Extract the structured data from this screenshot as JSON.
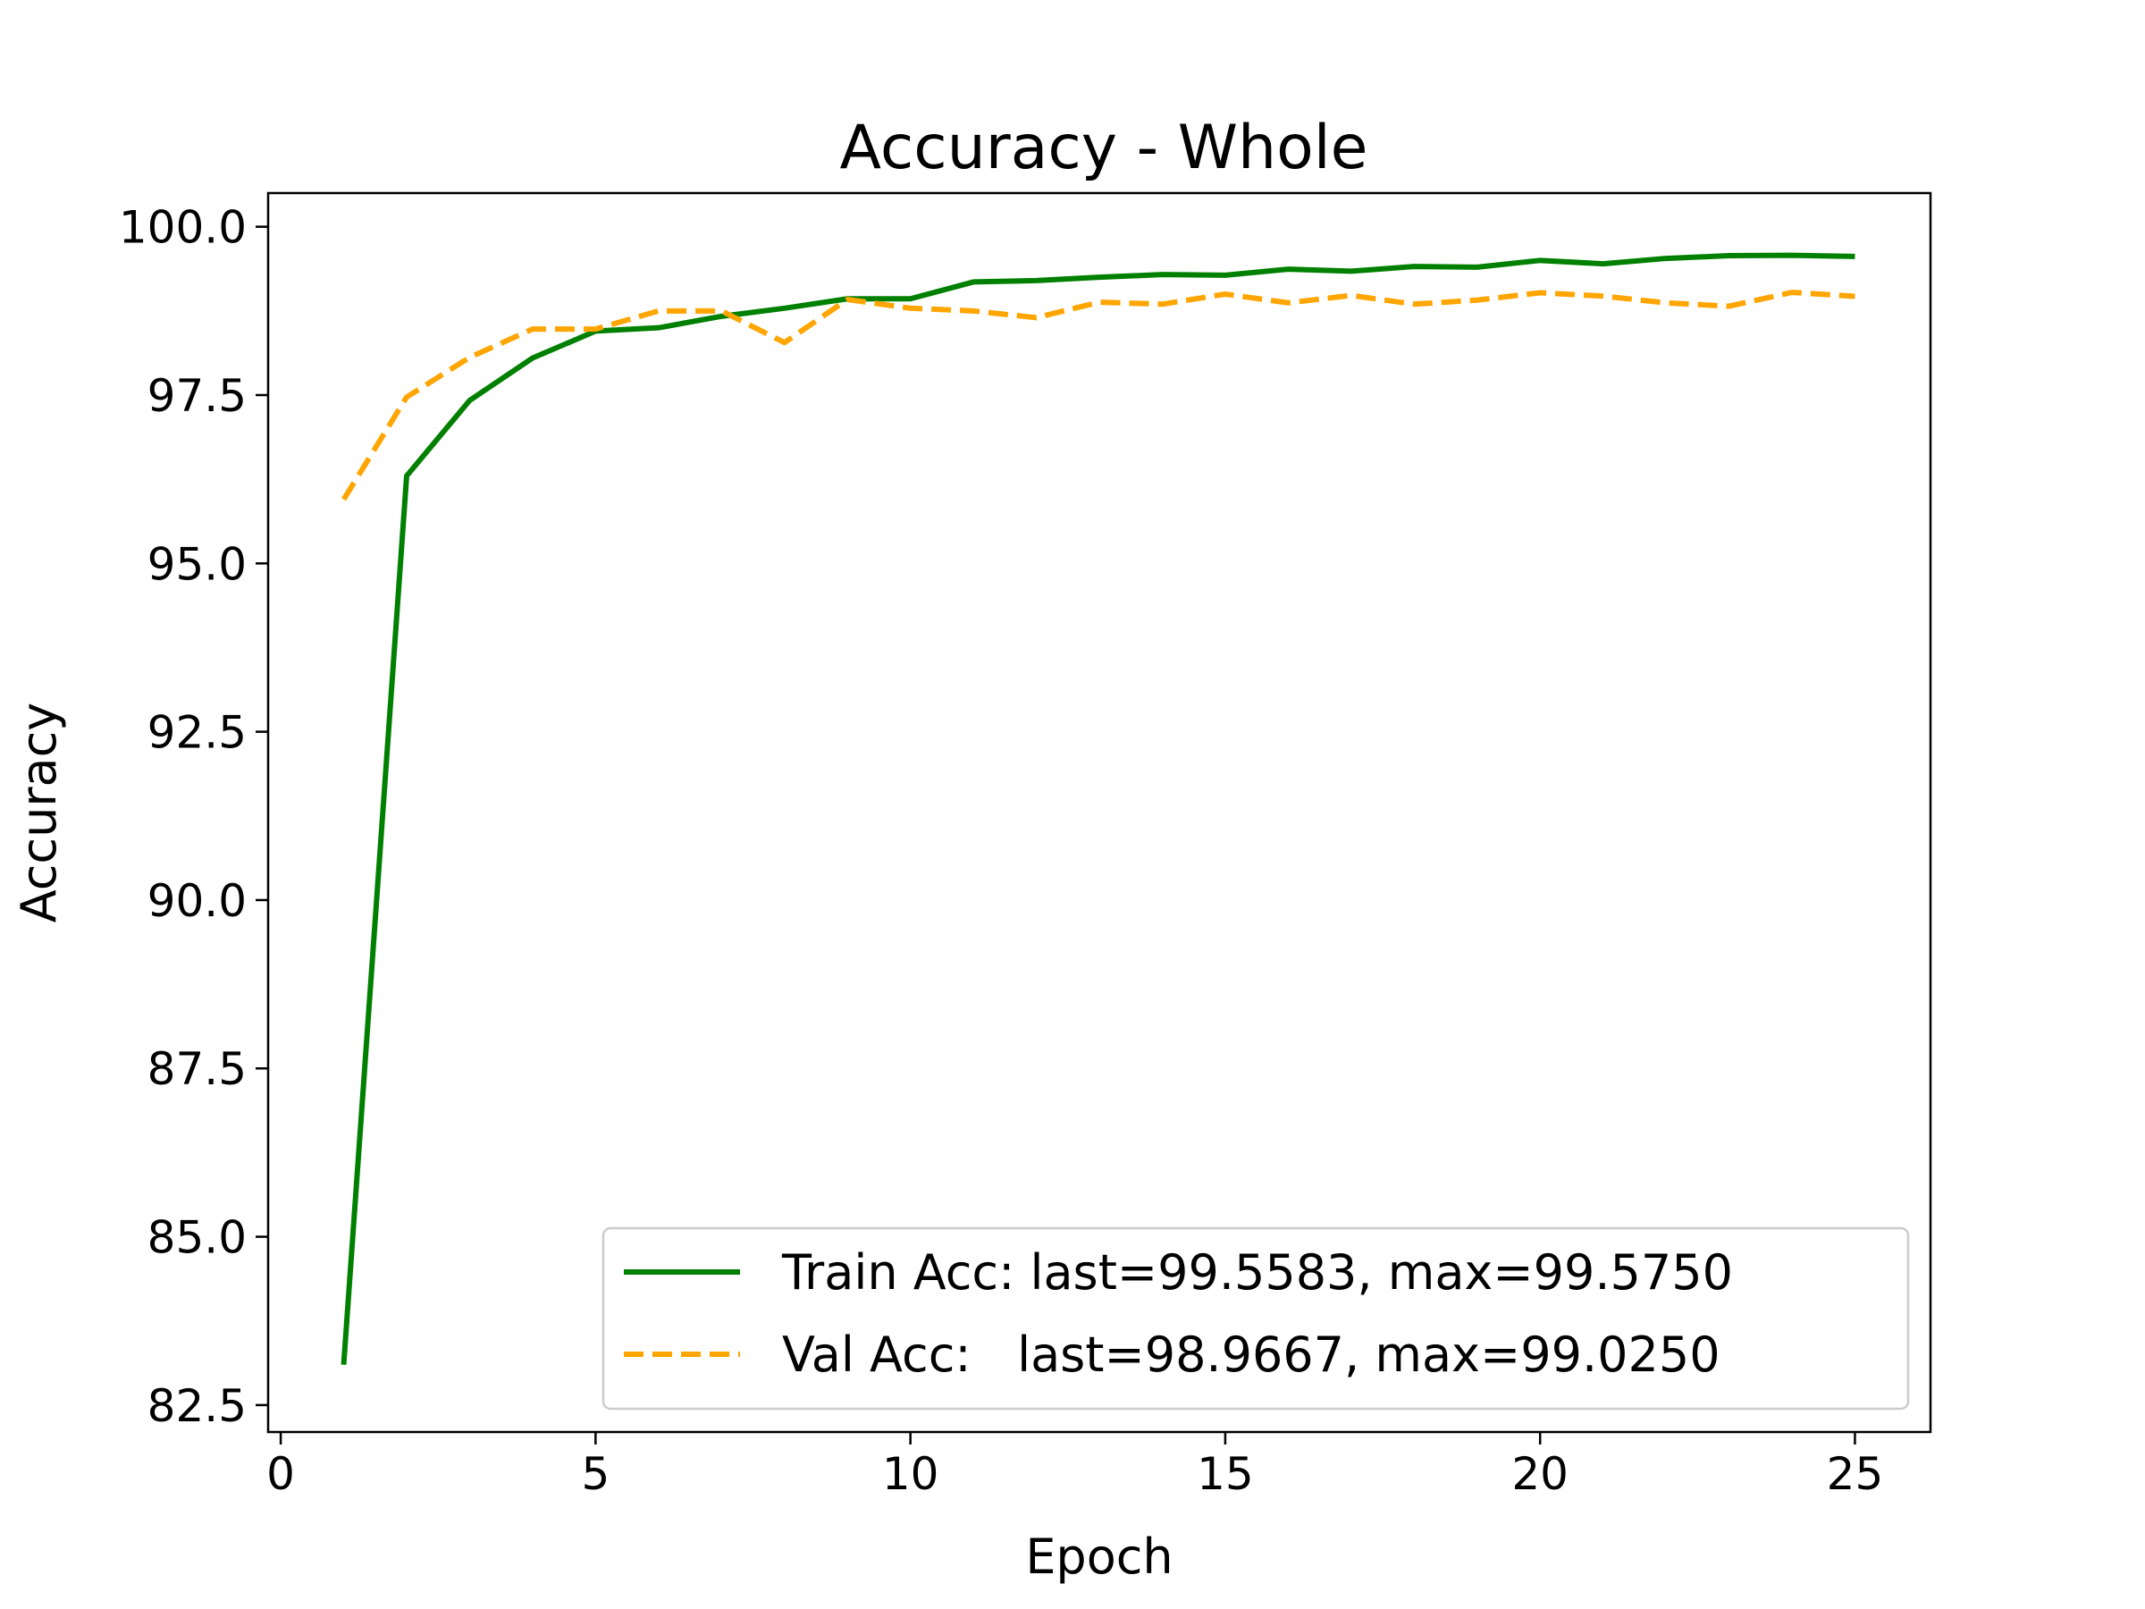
{
  "chart_data": {
    "type": "line",
    "title": "Accuracy - Whole",
    "xlabel": "Epoch",
    "ylabel": "Accuracy",
    "xlim": [
      -0.2,
      26.2
    ],
    "ylim": [
      82.1,
      100.5
    ],
    "xticks": [
      0,
      5,
      10,
      15,
      20,
      25
    ],
    "xtick_labels": [
      "0",
      "5",
      "10",
      "15",
      "20",
      "25"
    ],
    "yticks": [
      82.5,
      85.0,
      87.5,
      90.0,
      92.5,
      95.0,
      97.5,
      100.0
    ],
    "ytick_labels": [
      "82.5",
      "85.0",
      "87.5",
      "90.0",
      "92.5",
      "95.0",
      "97.5",
      "100.0"
    ],
    "grid": false,
    "legend_position": "lower-right",
    "x": [
      1,
      2,
      3,
      4,
      5,
      6,
      7,
      8,
      9,
      10,
      11,
      12,
      13,
      14,
      15,
      16,
      17,
      18,
      19,
      20,
      21,
      22,
      23,
      24,
      25
    ],
    "series": [
      {
        "name": "Train Acc: last=99.5583, max=99.5750",
        "color": "#008000",
        "style": "solid",
        "values": [
          83.1,
          96.3,
          97.42,
          98.05,
          98.45,
          98.5,
          98.67,
          98.79,
          98.93,
          98.93,
          99.18,
          99.2,
          99.25,
          99.29,
          99.28,
          99.37,
          99.34,
          99.41,
          99.4,
          99.5,
          99.45,
          99.53,
          99.57,
          99.575,
          99.5583
        ]
      },
      {
        "name": "Val Acc:   last=98.9667, max=99.0250",
        "color": "#ffa500",
        "style": "dashed",
        "values": [
          95.95,
          97.47,
          98.06,
          98.48,
          98.48,
          98.75,
          98.75,
          98.28,
          98.92,
          98.79,
          98.75,
          98.65,
          98.88,
          98.85,
          99.0,
          98.87,
          98.98,
          98.85,
          98.91,
          99.02,
          98.97,
          98.87,
          98.82,
          99.025,
          98.9667
        ]
      }
    ]
  }
}
